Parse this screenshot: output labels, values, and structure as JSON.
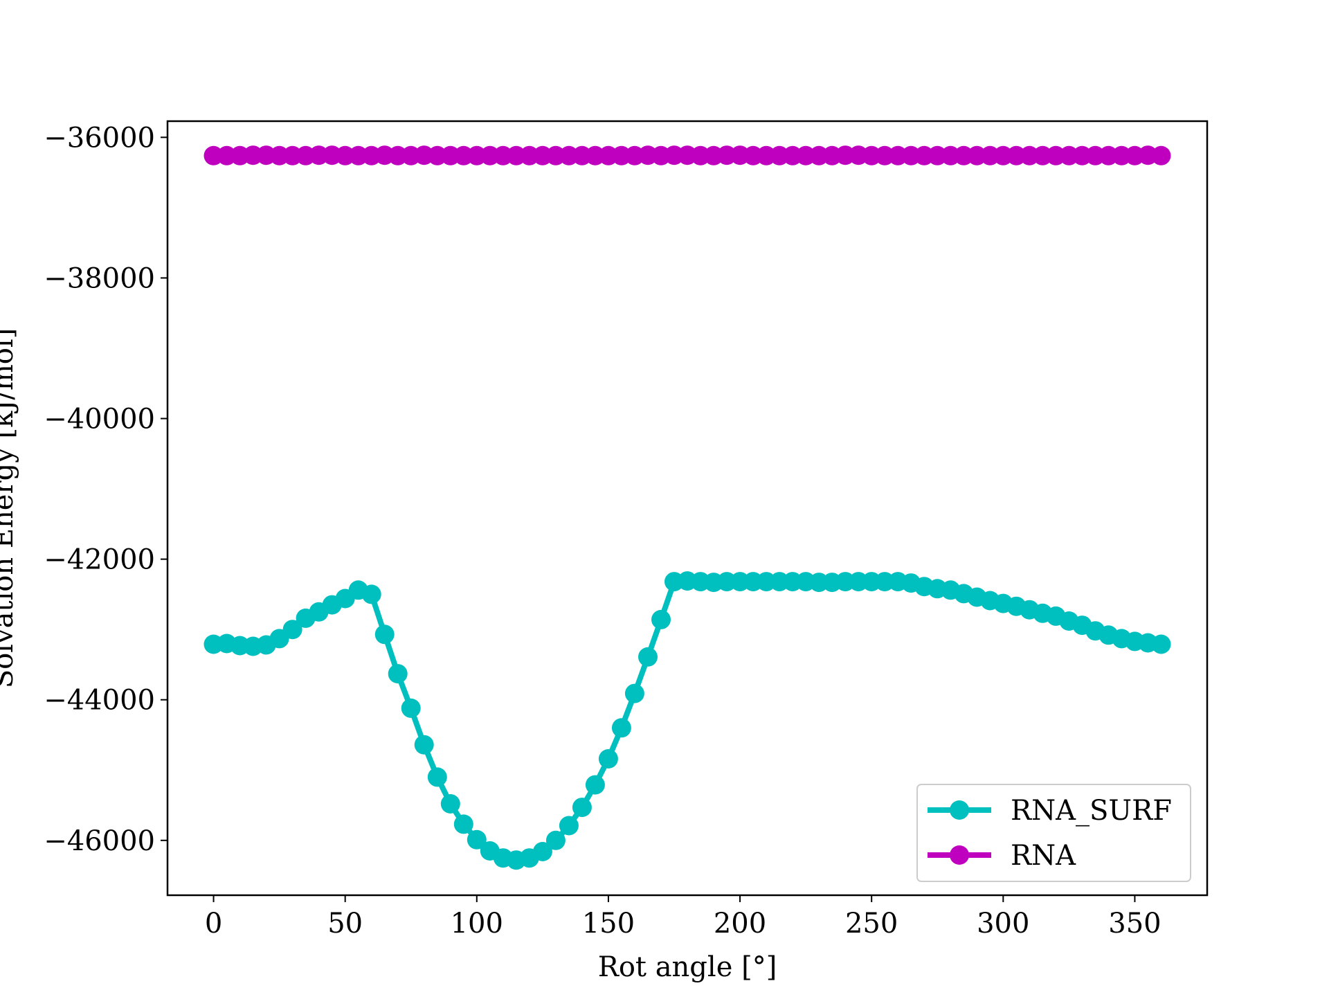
{
  "chart_data": {
    "type": "line",
    "xlabel": "Rot angle [°]",
    "ylabel": "Solvation Energy [kJ/mol]",
    "xlim": [
      -17.5,
      377.5
    ],
    "ylim": [
      -46780,
      -35770
    ],
    "x_ticks": [
      0,
      50,
      100,
      150,
      200,
      250,
      300,
      350
    ],
    "x_tick_labels": [
      "0",
      "50",
      "100",
      "150",
      "200",
      "250",
      "300",
      "350"
    ],
    "y_ticks": [
      -36000,
      -38000,
      -40000,
      -42000,
      -44000,
      -46000
    ],
    "y_tick_labels": [
      "−36000",
      "−38000",
      "−40000",
      "−42000",
      "−44000",
      "−46000"
    ],
    "legend_position": "lower right",
    "x": [
      0,
      5,
      10,
      15,
      20,
      25,
      30,
      35,
      40,
      45,
      50,
      55,
      60,
      65,
      70,
      75,
      80,
      85,
      90,
      95,
      100,
      105,
      110,
      115,
      120,
      125,
      130,
      135,
      140,
      145,
      150,
      155,
      160,
      165,
      170,
      175,
      180,
      185,
      190,
      195,
      200,
      205,
      210,
      215,
      220,
      225,
      230,
      235,
      240,
      245,
      250,
      255,
      260,
      265,
      270,
      275,
      280,
      285,
      290,
      295,
      300,
      305,
      310,
      315,
      320,
      325,
      330,
      335,
      340,
      345,
      350,
      355,
      360
    ],
    "series": [
      {
        "name": "RNA_SURF",
        "color": "#00bfbf",
        "values": [
          -43210,
          -43200,
          -43230,
          -43240,
          -43220,
          -43130,
          -43000,
          -42840,
          -42750,
          -42650,
          -42560,
          -42440,
          -42500,
          -43070,
          -43630,
          -44120,
          -44640,
          -45100,
          -45480,
          -45770,
          -45990,
          -46150,
          -46250,
          -46280,
          -46250,
          -46160,
          -46000,
          -45790,
          -45530,
          -45210,
          -44840,
          -44400,
          -43910,
          -43390,
          -42860,
          -42320,
          -42310,
          -42320,
          -42330,
          -42320,
          -42320,
          -42320,
          -42320,
          -42320,
          -42320,
          -42320,
          -42330,
          -42330,
          -42320,
          -42320,
          -42320,
          -42320,
          -42320,
          -42340,
          -42390,
          -42420,
          -42440,
          -42490,
          -42540,
          -42590,
          -42630,
          -42670,
          -42720,
          -42770,
          -42810,
          -42880,
          -42940,
          -43020,
          -43080,
          -43130,
          -43170,
          -43190,
          -43210
        ]
      },
      {
        "name": "RNA",
        "color": "#bf00bf",
        "values": [
          -36260,
          -36260,
          -36260,
          -36255,
          -36255,
          -36260,
          -36260,
          -36260,
          -36255,
          -36255,
          -36260,
          -36260,
          -36260,
          -36255,
          -36260,
          -36260,
          -36255,
          -36260,
          -36260,
          -36260,
          -36260,
          -36260,
          -36260,
          -36260,
          -36260,
          -36260,
          -36260,
          -36260,
          -36260,
          -36260,
          -36260,
          -36260,
          -36260,
          -36255,
          -36260,
          -36255,
          -36255,
          -36260,
          -36260,
          -36255,
          -36255,
          -36260,
          -36260,
          -36260,
          -36260,
          -36260,
          -36260,
          -36260,
          -36255,
          -36255,
          -36260,
          -36260,
          -36260,
          -36260,
          -36260,
          -36260,
          -36260,
          -36260,
          -36260,
          -36260,
          -36260,
          -36260,
          -36260,
          -36260,
          -36260,
          -36260,
          -36260,
          -36260,
          -36260,
          -36260,
          -36260,
          -36255,
          -36260
        ]
      }
    ]
  }
}
